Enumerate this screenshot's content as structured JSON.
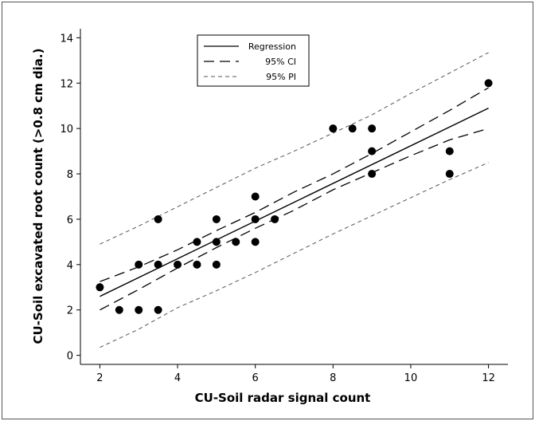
{
  "chart_data": {
    "type": "scatter",
    "title": "",
    "xlabel": "CU-Soil radar signal count",
    "ylabel": "CU-Soil excavated root count (>0.8 cm dia.)",
    "xlim": [
      1.5,
      12.5
    ],
    "ylim": [
      -0.4,
      14.4
    ],
    "xticks": [
      2,
      4,
      6,
      8,
      10,
      12
    ],
    "yticks": [
      0,
      2,
      4,
      6,
      8,
      10,
      12,
      14
    ],
    "grid": false,
    "legend_position": "top-center",
    "legend": {
      "regression": "Regression",
      "ci": "95% CI",
      "pi": "95% PI"
    },
    "points": [
      {
        "x": 2,
        "y": 3
      },
      {
        "x": 2.5,
        "y": 2
      },
      {
        "x": 3,
        "y": 2
      },
      {
        "x": 3,
        "y": 4
      },
      {
        "x": 3.5,
        "y": 2
      },
      {
        "x": 3.5,
        "y": 4
      },
      {
        "x": 3.5,
        "y": 6
      },
      {
        "x": 4,
        "y": 4
      },
      {
        "x": 4.5,
        "y": 4
      },
      {
        "x": 4.5,
        "y": 5
      },
      {
        "x": 5,
        "y": 4
      },
      {
        "x": 5,
        "y": 5
      },
      {
        "x": 5,
        "y": 6
      },
      {
        "x": 5.5,
        "y": 5
      },
      {
        "x": 6,
        "y": 5
      },
      {
        "x": 6,
        "y": 6
      },
      {
        "x": 6,
        "y": 7
      },
      {
        "x": 6.5,
        "y": 6
      },
      {
        "x": 8,
        "y": 10
      },
      {
        "x": 8.5,
        "y": 10
      },
      {
        "x": 9,
        "y": 8
      },
      {
        "x": 9,
        "y": 9
      },
      {
        "x": 9,
        "y": 10
      },
      {
        "x": 11,
        "y": 8
      },
      {
        "x": 11,
        "y": 9
      },
      {
        "x": 12,
        "y": 12
      }
    ],
    "regression": {
      "x": [
        2,
        12
      ],
      "y": [
        2.6,
        10.9
      ]
    },
    "ci_upper": {
      "x": [
        2,
        3,
        4,
        5,
        6,
        7,
        8,
        9,
        10,
        11,
        12
      ],
      "y": [
        3.25,
        3.9,
        4.65,
        5.5,
        6.3,
        7.2,
        8.0,
        8.9,
        9.85,
        10.8,
        11.8
      ]
    },
    "ci_lower": {
      "x": [
        2,
        3,
        4,
        5,
        6,
        7,
        8,
        9,
        10,
        11,
        12
      ],
      "y": [
        2.0,
        2.9,
        3.85,
        4.75,
        5.6,
        6.4,
        7.3,
        8.05,
        8.8,
        9.5,
        10.0
      ]
    },
    "pi_upper": {
      "x": [
        2,
        3,
        4,
        5,
        6,
        7,
        8,
        9,
        10,
        11,
        12
      ],
      "y": [
        4.9,
        5.7,
        6.55,
        7.4,
        8.25,
        9.0,
        9.8,
        10.6,
        11.55,
        12.45,
        13.35
      ]
    },
    "pi_lower": {
      "x": [
        2,
        3,
        4,
        5,
        6,
        7,
        8,
        9,
        10,
        11,
        12
      ],
      "y": [
        0.35,
        1.15,
        2.1,
        2.85,
        3.65,
        4.5,
        5.35,
        6.15,
        6.95,
        7.75,
        8.5
      ]
    }
  }
}
